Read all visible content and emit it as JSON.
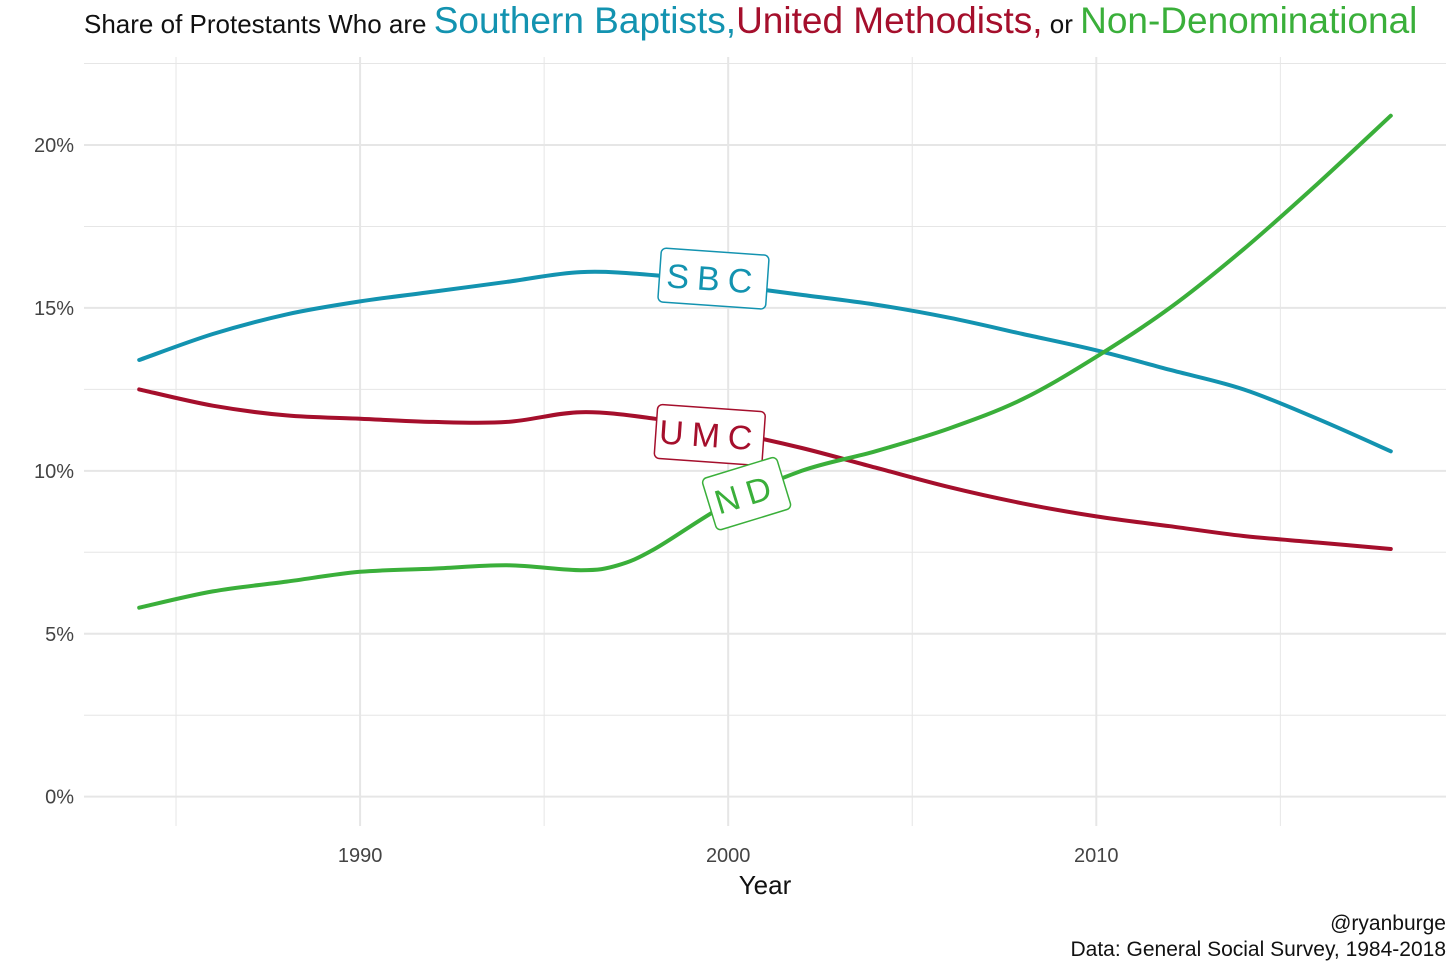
{
  "title": {
    "prefix": "Share of Protestants  Who are ",
    "sbc": "Southern Baptists,",
    "umc": "United Methodists,",
    "or": " or ",
    "nd": "Non-Denominational"
  },
  "caption": {
    "handle": "@ryanburge",
    "source": "Data: General Social Survey, 1984-2018"
  },
  "colors": {
    "sbc": "#1393b0",
    "umc": "#a50f2c",
    "nd": "#3aaf3a",
    "grid": "#e6e6e6"
  },
  "chart_data": {
    "type": "line",
    "xlabel": "Year",
    "ylabel": "",
    "xlim": [
      1982.5,
      2019.5
    ],
    "ylim": [
      -0.9,
      22.7
    ],
    "xticks": [
      1990,
      2000,
      2010
    ],
    "xtick_labels": [
      "1990",
      "2000",
      "2010"
    ],
    "yticks": [
      0,
      5,
      10,
      15,
      20
    ],
    "ytick_labels": [
      "0%",
      "5%",
      "10%",
      "15%",
      "20%"
    ],
    "grid": true,
    "legend": "none (direct labels on lines)",
    "series": [
      {
        "name": "SBC",
        "color_key": "sbc",
        "x": [
          1984,
          1986,
          1988,
          1990,
          1992,
          1994,
          1996,
          1998,
          2000,
          2002,
          2004,
          2006,
          2008,
          2010,
          2012,
          2014,
          2016,
          2018
        ],
        "y": [
          13.4,
          14.2,
          14.8,
          15.2,
          15.5,
          15.8,
          16.1,
          16.0,
          15.7,
          15.4,
          15.1,
          14.7,
          14.2,
          13.7,
          13.1,
          12.5,
          11.6,
          10.6
        ]
      },
      {
        "name": "UMC",
        "color_key": "umc",
        "x": [
          1984,
          1986,
          1988,
          1990,
          1992,
          1994,
          1996,
          1998,
          2000,
          2002,
          2004,
          2006,
          2008,
          2010,
          2012,
          2014,
          2016,
          2018
        ],
        "y": [
          12.5,
          12.0,
          11.7,
          11.6,
          11.5,
          11.5,
          11.8,
          11.6,
          11.2,
          10.7,
          10.1,
          9.5,
          9.0,
          8.6,
          8.3,
          8.0,
          7.8,
          7.6
        ]
      },
      {
        "name": "ND",
        "color_key": "nd",
        "x": [
          1984,
          1986,
          1988,
          1990,
          1992,
          1994,
          1996,
          1997,
          1998,
          2000,
          2002,
          2004,
          2006,
          2008,
          2010,
          2012,
          2014,
          2016,
          2018
        ],
        "y": [
          5.8,
          6.3,
          6.6,
          6.9,
          7.0,
          7.1,
          6.95,
          7.1,
          7.6,
          9.0,
          10.0,
          10.6,
          11.3,
          12.2,
          13.5,
          15.0,
          16.8,
          18.8,
          20.9
        ]
      }
    ],
    "labels": [
      {
        "text": "SBC",
        "series": "SBC",
        "x": 1999.6,
        "y": 15.9,
        "angle": 4
      },
      {
        "text": "UMC",
        "series": "UMC",
        "x": 1999.5,
        "y": 11.1,
        "angle": 4
      },
      {
        "text": "ND",
        "series": "ND",
        "x": 2000.5,
        "y": 9.3,
        "angle": -17
      }
    ]
  }
}
